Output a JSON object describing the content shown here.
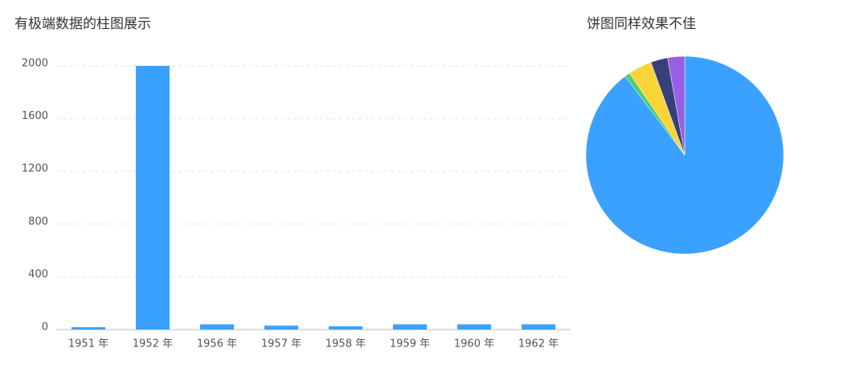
{
  "chart_data": [
    {
      "type": "bar",
      "title": "有极端数据的柱图展示",
      "categories": [
        "1951 年",
        "1952 年",
        "1956 年",
        "1957 年",
        "1958 年",
        "1959 年",
        "1960 年",
        "1962 年"
      ],
      "values": [
        18,
        2000,
        40,
        30,
        25,
        40,
        40,
        40
      ],
      "color": "#3ba1ff",
      "ylim": [
        0,
        2000
      ],
      "yticks": [
        0,
        400,
        800,
        1200,
        1600,
        2000
      ],
      "grid": true
    },
    {
      "type": "pie",
      "title": "饼图同样效果不佳",
      "values": [
        2000,
        19,
        87,
        62,
        62
      ],
      "colors": [
        "#3ba1ff",
        "#4ecb73",
        "#fbd437",
        "#36407a",
        "#975fe5"
      ]
    }
  ]
}
